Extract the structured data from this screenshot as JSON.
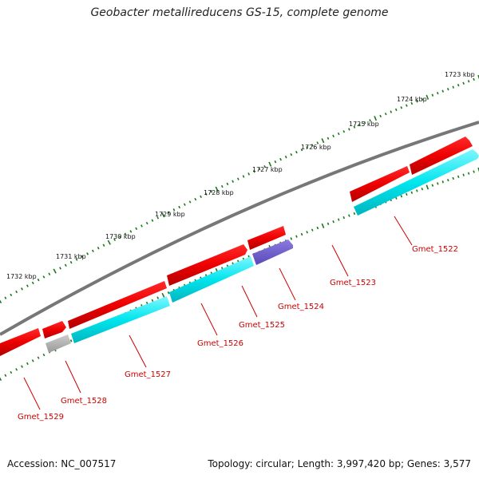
{
  "title": "Geobacter metallireducens GS-15, complete genome",
  "footer": {
    "accession": "Accession: NC_007517",
    "summary": "Topology: circular; Length: 3,997,420 bp; Genes: 3,577"
  },
  "ruler": {
    "labels": [
      "1723 kbp",
      "1724 kbp",
      "1725 kbp",
      "1726 kbp",
      "1727 kbp",
      "1728 kbp",
      "1729 kbp",
      "1730 kbp",
      "1731 kbp",
      "1732 kbp"
    ]
  },
  "genes": [
    {
      "name": "Gmet_1522",
      "strand": "forward",
      "color": "#ee0000",
      "companion_color": "#00e5ee"
    },
    {
      "name": "Gmet_1523",
      "strand": "forward",
      "color": "#ee0000"
    },
    {
      "name": "Gmet_1524",
      "strand": "reverse",
      "color": "#6a5acd"
    },
    {
      "name": "Gmet_1525",
      "strand": "forward",
      "color": "#ee0000",
      "companion_color": "#00e5ee"
    },
    {
      "name": "Gmet_1526",
      "strand": "forward",
      "color": "#ee0000",
      "companion_color": "#00e5ee"
    },
    {
      "name": "Gmet_1527",
      "strand": "forward",
      "color": "#ee0000",
      "companion_color": "#00e5ee"
    },
    {
      "name": "Gmet_1528",
      "strand": "forward",
      "color": "#ee0000",
      "companion_color": "#aaaaaa"
    },
    {
      "name": "Gmet_1529",
      "strand": "forward",
      "color": "#ee0000"
    }
  ],
  "colors": {
    "backbone": "#777777",
    "ticks": "#1a7a1a",
    "cds": "#ee0000",
    "gene_feature": "#00e5ee",
    "misc_feature": "#6a5acd",
    "pseudo": "#aaaaaa",
    "label_text": "#cc0000"
  }
}
